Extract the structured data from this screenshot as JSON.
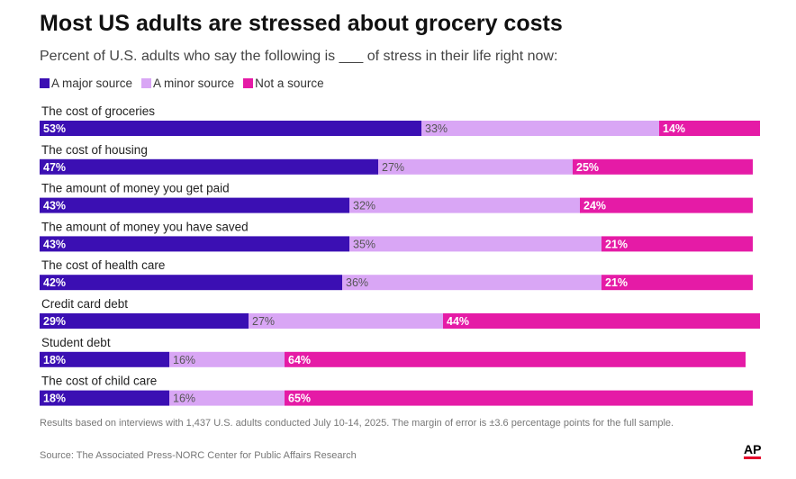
{
  "title": "Most US adults are stressed about grocery costs",
  "subtitle": "Percent of U.S. adults who say the following is ___ of stress in their life right now:",
  "legend": [
    {
      "label": "A major source",
      "color": "#3b0fb3"
    },
    {
      "label": "A minor source",
      "color": "#d9a6f5"
    },
    {
      "label": "Not a source",
      "color": "#e51ba6"
    }
  ],
  "chart_data": {
    "type": "bar",
    "orientation": "horizontal",
    "stacked": true,
    "xlim": [
      0,
      100
    ],
    "categories": [
      "The cost of groceries",
      "The cost of housing",
      "The amount of money you get paid",
      "The amount of money you have saved",
      "The cost of health care",
      "Credit card debt",
      "Student debt",
      "The cost of child care"
    ],
    "series": [
      {
        "name": "A major source",
        "color": "#3b0fb3",
        "values": [
          53,
          47,
          43,
          43,
          42,
          29,
          18,
          18
        ]
      },
      {
        "name": "A minor source",
        "color": "#d9a6f5",
        "values": [
          33,
          27,
          32,
          35,
          36,
          27,
          16,
          16
        ]
      },
      {
        "name": "Not a source",
        "color": "#e51ba6",
        "values": [
          14,
          25,
          24,
          21,
          21,
          44,
          64,
          65
        ]
      }
    ],
    "data_labels": true,
    "legend_position": "top-left"
  },
  "footnote": "Results based on interviews with 1,437 U.S. adults conducted July 10-14, 2025. The margin of error is ±3.6 percentage points for the full sample.",
  "source": "Source: The Associated Press-NORC Center for Public Affairs Research",
  "logo_text": "AP"
}
